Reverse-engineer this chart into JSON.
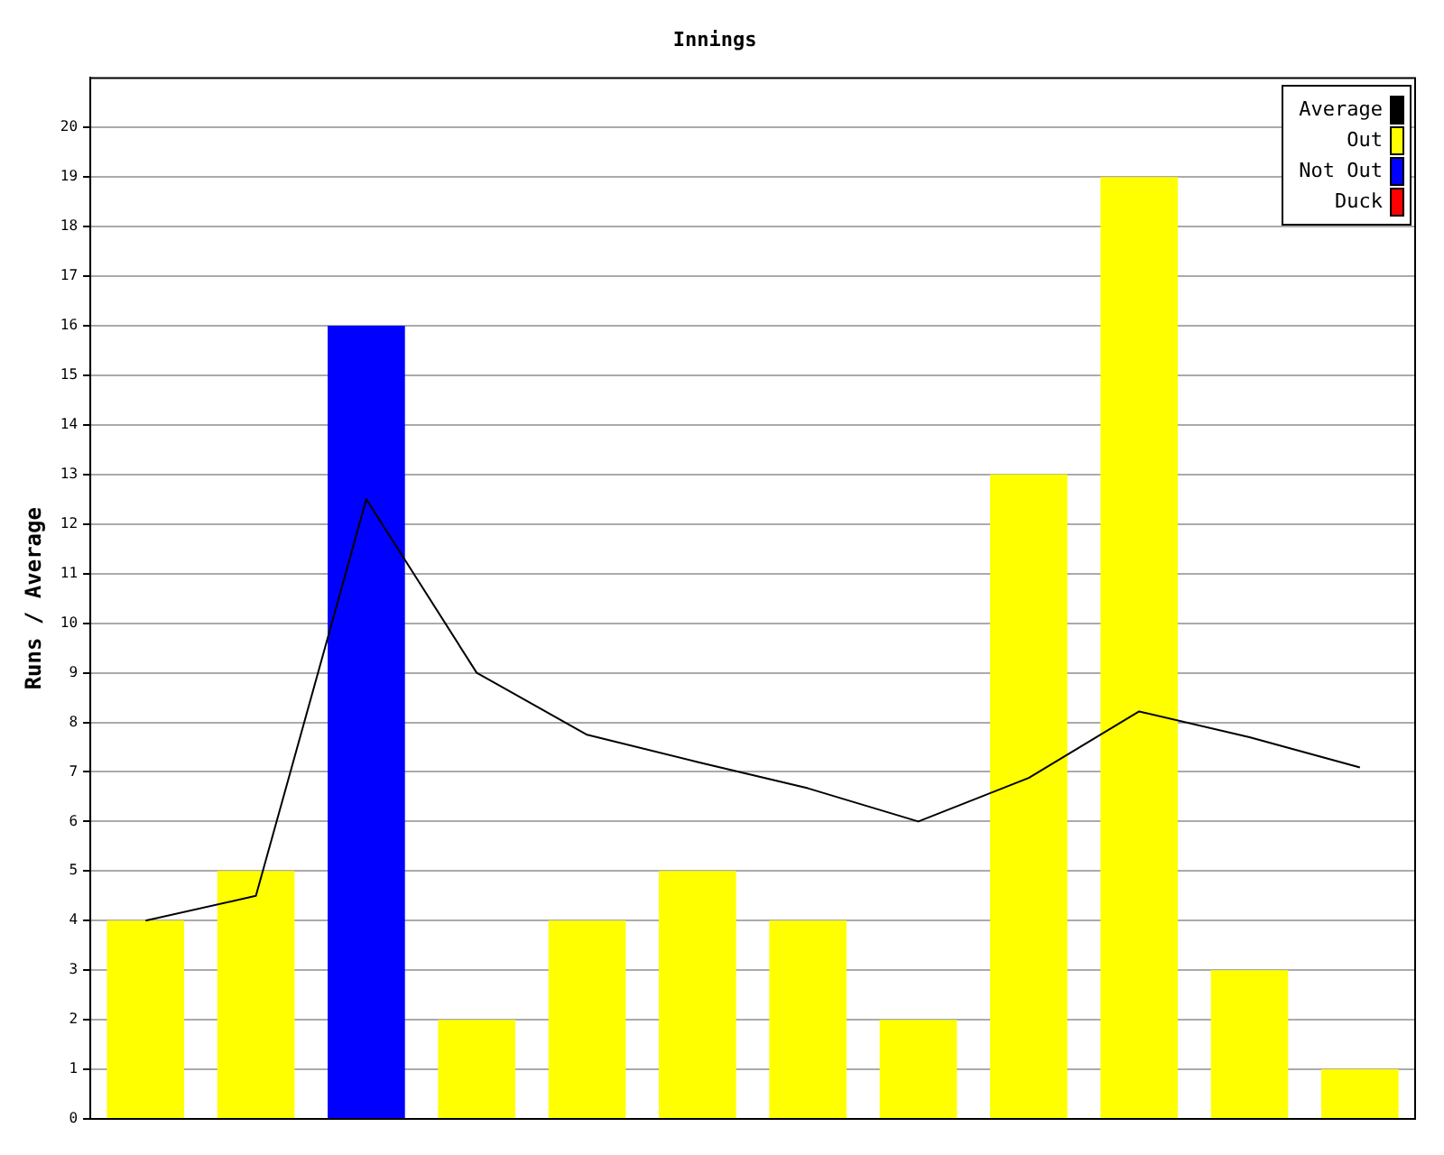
{
  "chart_data": {
    "type": "bar",
    "title": "Innings",
    "ylabel": "Runs / Average",
    "categories": [
      null,
      null,
      null,
      null,
      null,
      null,
      null,
      null,
      null,
      null,
      null,
      null
    ],
    "series": [
      {
        "name": "Average",
        "type": "line",
        "color": "#000000",
        "values": [
          4,
          4.5,
          12.5,
          9,
          7.75,
          7.2,
          6.67,
          6,
          6.88,
          8.22,
          7.7,
          7.09
        ]
      },
      {
        "name": "Out",
        "color": "#ffff00",
        "values": [
          4,
          5,
          null,
          2,
          4,
          5,
          4,
          2,
          13,
          19,
          3,
          1
        ]
      },
      {
        "name": "Not Out",
        "color": "#0000ff",
        "values": [
          null,
          null,
          16,
          null,
          null,
          null,
          null,
          null,
          null,
          null,
          null,
          null
        ]
      },
      {
        "name": "Duck",
        "color": "#ff0000",
        "values": [
          null,
          null,
          null,
          null,
          null,
          null,
          null,
          null,
          null,
          null,
          null,
          null
        ]
      }
    ],
    "ylim": [
      0,
      21
    ],
    "yticks": [
      0,
      1,
      2,
      3,
      4,
      5,
      6,
      7,
      8,
      9,
      10,
      11,
      12,
      13,
      14,
      15,
      16,
      17,
      18,
      19,
      20
    ],
    "grid": "y",
    "legend": "top right",
    "marker": "none"
  }
}
